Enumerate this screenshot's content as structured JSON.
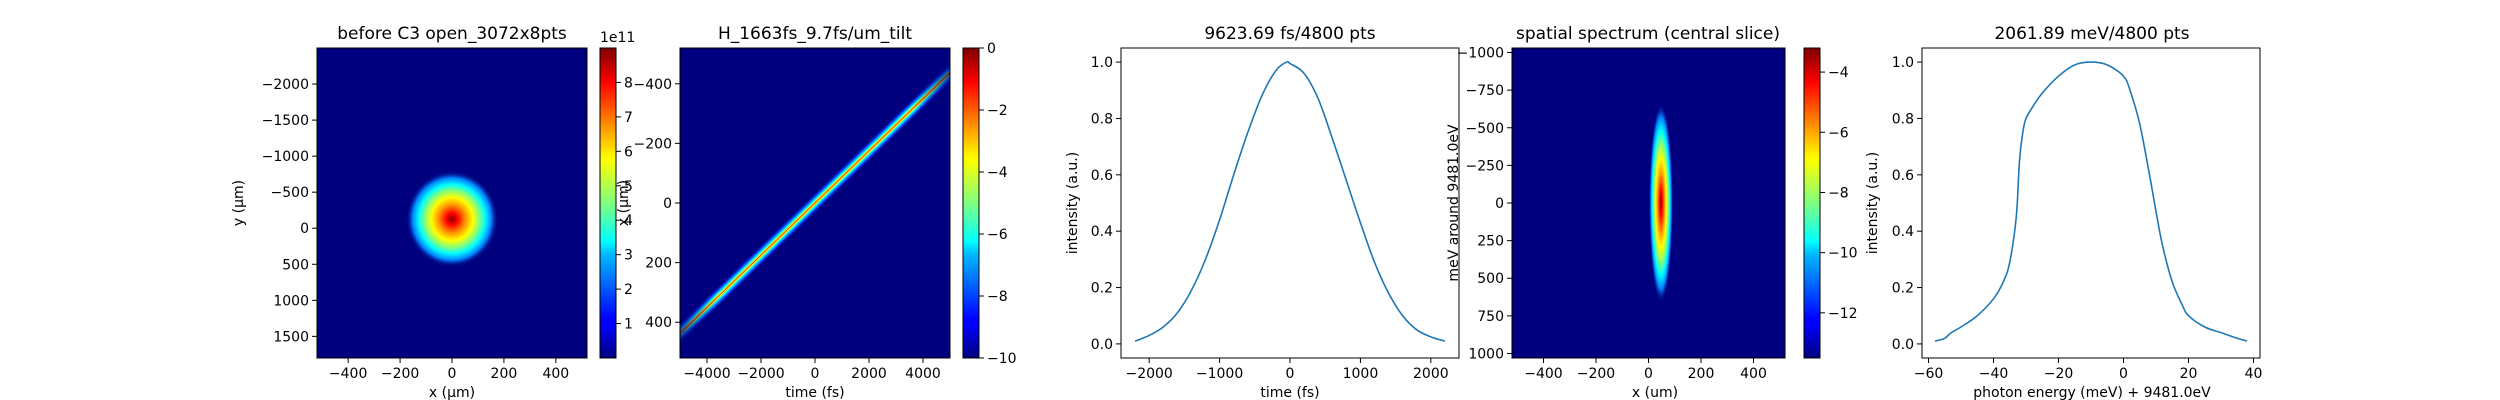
{
  "chart_data": [
    {
      "type": "heatmap",
      "title": "before C3 open_3072x8pts",
      "xlabel": "x (μm)",
      "ylabel": "y (μm)",
      "xlim": [
        -520,
        520
      ],
      "ylim": [
        1800,
        -2500
      ],
      "xticks": [
        -400,
        -200,
        0,
        200,
        400
      ],
      "yticks": [
        -2000,
        -1500,
        -1000,
        -500,
        0,
        500,
        1000,
        1500
      ],
      "colormap": "jet",
      "blob": {
        "shape": "gaussian",
        "center": [
          0,
          0
        ],
        "sigma": [
          80,
          250
        ]
      },
      "colorbar": {
        "min": 0,
        "max": 9,
        "ticks": [
          1,
          2,
          3,
          4,
          5,
          6,
          7,
          8
        ],
        "exponent": "1e11"
      }
    },
    {
      "type": "heatmap",
      "title": "H_1663fs_9.7fs/um_tilt",
      "xlabel": "time (fs)",
      "ylabel": "x (μm)",
      "xlim": [
        -5000,
        5000
      ],
      "ylim": [
        520,
        -520
      ],
      "xticks": [
        -4000,
        -2000,
        0,
        2000,
        4000
      ],
      "yticks": [
        -400,
        -200,
        0,
        200,
        400
      ],
      "colormap": "jet",
      "blob": {
        "shape": "tilted-streak",
        "from": [
          -2800,
          -290
        ],
        "to": [
          2800,
          290
        ]
      },
      "colorbar": {
        "min": -10,
        "max": 0,
        "ticks": [
          0,
          -2,
          -4,
          -6,
          -8,
          -10
        ]
      }
    },
    {
      "type": "line",
      "title": "9623.69 fs/4800 pts",
      "xlabel": "time (fs)",
      "ylabel": "intensity (a.u.)",
      "xlim": [
        -2400,
        2400
      ],
      "ylim": [
        -0.05,
        1.05
      ],
      "xticks": [
        -2000,
        -1000,
        0,
        1000,
        2000
      ],
      "yticks": [
        0.0,
        0.2,
        0.4,
        0.6,
        0.8,
        1.0
      ],
      "series": [
        {
          "color": "#1f77b4",
          "x": [
            -2200,
            -2000,
            -1800,
            -1600,
            -1400,
            -1200,
            -1000,
            -800,
            -600,
            -400,
            -200,
            -50,
            0,
            200,
            400,
            600,
            800,
            1000,
            1200,
            1400,
            1600,
            1800,
            2000,
            2200
          ],
          "y": [
            0.01,
            0.03,
            0.06,
            0.11,
            0.19,
            0.3,
            0.44,
            0.6,
            0.75,
            0.88,
            0.97,
            1.0,
            0.995,
            0.96,
            0.87,
            0.73,
            0.58,
            0.43,
            0.29,
            0.18,
            0.1,
            0.05,
            0.025,
            0.01
          ]
        }
      ]
    },
    {
      "type": "heatmap",
      "title": "spatial spectrum (central slice)",
      "xlabel": "x (um)",
      "ylabel": "meV around 9481.0eV",
      "xlim": [
        -520,
        520
      ],
      "ylim": [
        1030,
        -1030
      ],
      "xticks": [
        -400,
        -200,
        0,
        200,
        400
      ],
      "yticks": [
        1000,
        750,
        500,
        250,
        0,
        -250,
        -500,
        -750,
        -1000
      ],
      "colormap": "jet",
      "blob": {
        "shape": "vertical-streak",
        "center": [
          0,
          0
        ],
        "sigma": [
          12,
          350
        ]
      },
      "colorbar": {
        "min": -13.5,
        "max": -3.2,
        "ticks": [
          -4,
          -6,
          -8,
          -10,
          -12
        ]
      }
    },
    {
      "type": "line",
      "title": "2061.89 meV/4800 pts",
      "xlabel": "photon energy (meV) + 9481.0eV",
      "ylabel": "intensity (a.u.)",
      "xlim": [
        -62,
        42
      ],
      "ylim": [
        -0.05,
        1.05
      ],
      "xticks": [
        -60,
        -40,
        -20,
        0,
        20,
        40
      ],
      "yticks": [
        0.0,
        0.2,
        0.4,
        0.6,
        0.8,
        1.0
      ],
      "series": [
        {
          "color": "#1f77b4",
          "x": [
            -58,
            -55,
            -53,
            -50,
            -45,
            -40,
            -37,
            -35,
            -33,
            -32,
            -31,
            -30,
            -28,
            -25,
            -20,
            -15,
            -10,
            -5,
            0,
            2,
            5,
            8,
            10,
            12,
            15,
            18,
            20,
            25,
            30,
            35,
            38
          ],
          "y": [
            0.01,
            0.02,
            0.04,
            0.06,
            0.1,
            0.16,
            0.22,
            0.29,
            0.45,
            0.65,
            0.75,
            0.8,
            0.84,
            0.89,
            0.95,
            0.99,
            1.0,
            0.99,
            0.95,
            0.9,
            0.78,
            0.6,
            0.47,
            0.35,
            0.22,
            0.14,
            0.1,
            0.06,
            0.04,
            0.02,
            0.01
          ]
        }
      ]
    }
  ]
}
